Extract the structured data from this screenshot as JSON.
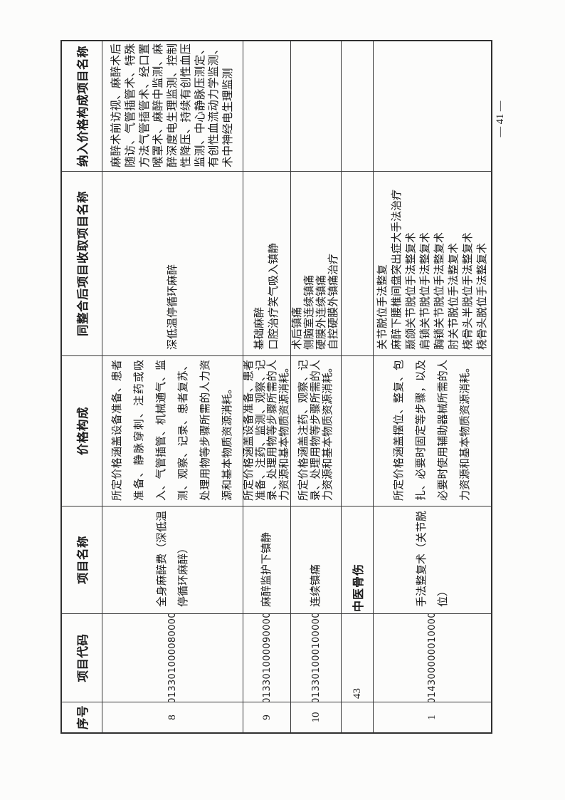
{
  "colors": {
    "paper": "#fcfcfb",
    "border": "#2f2f2f",
    "ink": "#1c1c1c"
  },
  "page": {
    "number_label": "— 41 —"
  },
  "table": {
    "headers": {
      "seq": "序号",
      "code": "项目代码",
      "name": "项目名称",
      "composition": "价格构成",
      "merged": "同整合后项目收取项目名称",
      "included": "纳入价格构成项目名称"
    },
    "rows": [
      {
        "seq": "8",
        "code": "013301000080000",
        "name": "全身麻醉费（深低温停循环麻醉）",
        "composition": "所定价格涵盖设备准备、患者准备、静脉穿刺、注药或吸入、气管插管、机械通气、监测、观察、记录、患者复苏、处理用物等步骤所需的人力资源和基本物质资源消耗。",
        "merged": [
          "深低温停循环麻醉"
        ],
        "included": "麻醉术前访视、麻醉术后随访、气管插管术、特殊方法气管插管术、经口置喉罩术、麻醉中监测、麻醉深度电生理监测、控制性降压、持续有创性血压监测、中心静脉压测定、有创性血流动力学监测、术中神经电生理监测"
      },
      {
        "seq": "9",
        "code": "013301000090000",
        "name": "麻醉监护下镇静",
        "composition": "所定价格涵盖设备准备、患者准备、注药、监测、观察、记录、处理用物等步骤所需的人力资源和基本物质资源消耗。",
        "merged": [
          "基础麻醉",
          "口腔治疗笑气吸入镇静"
        ],
        "included": ""
      },
      {
        "seq": "10",
        "code": "013301000100000",
        "name": "连续镇痛",
        "composition": "所定价格涵盖注药、观察、记录、处理用物等步骤所需的人力资源和基本物质资源消耗。",
        "merged": [
          "术后镇痛",
          "侧脑室连续镇痛",
          "硬膜外连续镇痛",
          "自控硬膜外镇痛治疗"
        ],
        "included": ""
      },
      {
        "type": "section",
        "number": "43",
        "title": "中医骨伤"
      },
      {
        "seq": "1",
        "code": "014300000010000",
        "name": "手法整复术（关节脱位）",
        "composition": "所定价格涵盖摆位、整复、包扎、必要时固定等步骤，以及必要时使用辅助器械所需的人力资源和基本物质资源消耗。",
        "merged": [
          "关节脱位手法整复",
          "麻醉下腰椎间盘突出症大手法治疗",
          "颞颌关节脱位手法整复术",
          "肩锁关节脱位手法整复术",
          "胸锁关节脱位手法整复术",
          "肘关节脱位手法整复术",
          "桡骨头半脱位手法整复术",
          "桡骨头脱位手法整复术"
        ],
        "included": ""
      }
    ]
  }
}
